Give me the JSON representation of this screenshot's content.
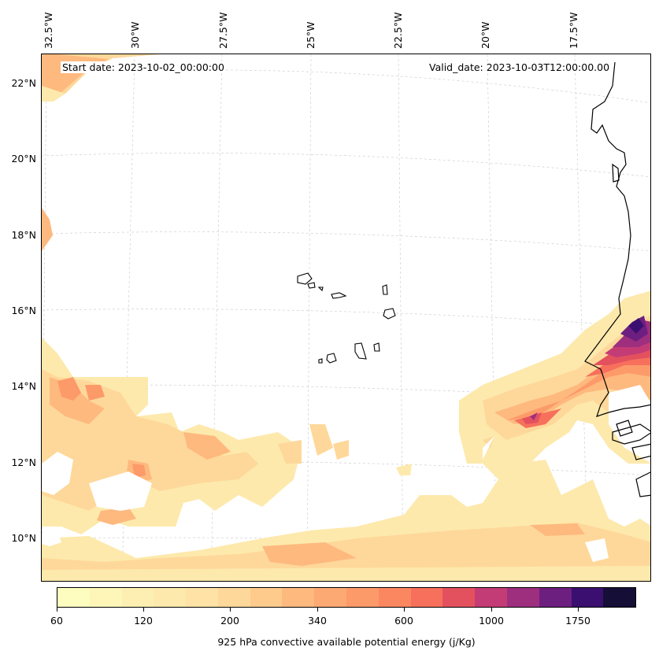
{
  "map": {
    "start_date": "Start date: 2023-10-02_00:00:00",
    "valid_date": "Valid_date: 2023-10-03T12:00:00.00",
    "longitude_labels": [
      "32.5°W",
      "30°W",
      "27.5°W",
      "25°W",
      "22.5°W",
      "20°W",
      "17.5°W"
    ],
    "latitude_labels": [
      "22°N",
      "20°N",
      "18°N",
      "16°N",
      "14°N",
      "12°N",
      "10°N"
    ],
    "colors": {
      "coastline": "#000000",
      "gridline": "#b0b0b0",
      "palette": [
        "#fcfdbf",
        "#fde9ac",
        "#fed89a",
        "#feb97f",
        "#fd9a6a",
        "#f6705c",
        "#e3515e",
        "#c43c75",
        "#9e2f7f",
        "#6d1f80",
        "#3b0f70",
        "#150e37"
      ]
    }
  },
  "colorbar": {
    "title": "925 hPa convective available potential energy (j/Kg)",
    "tick_labels": [
      "60",
      "120",
      "200",
      "340",
      "600",
      "1000",
      "1750"
    ]
  }
}
